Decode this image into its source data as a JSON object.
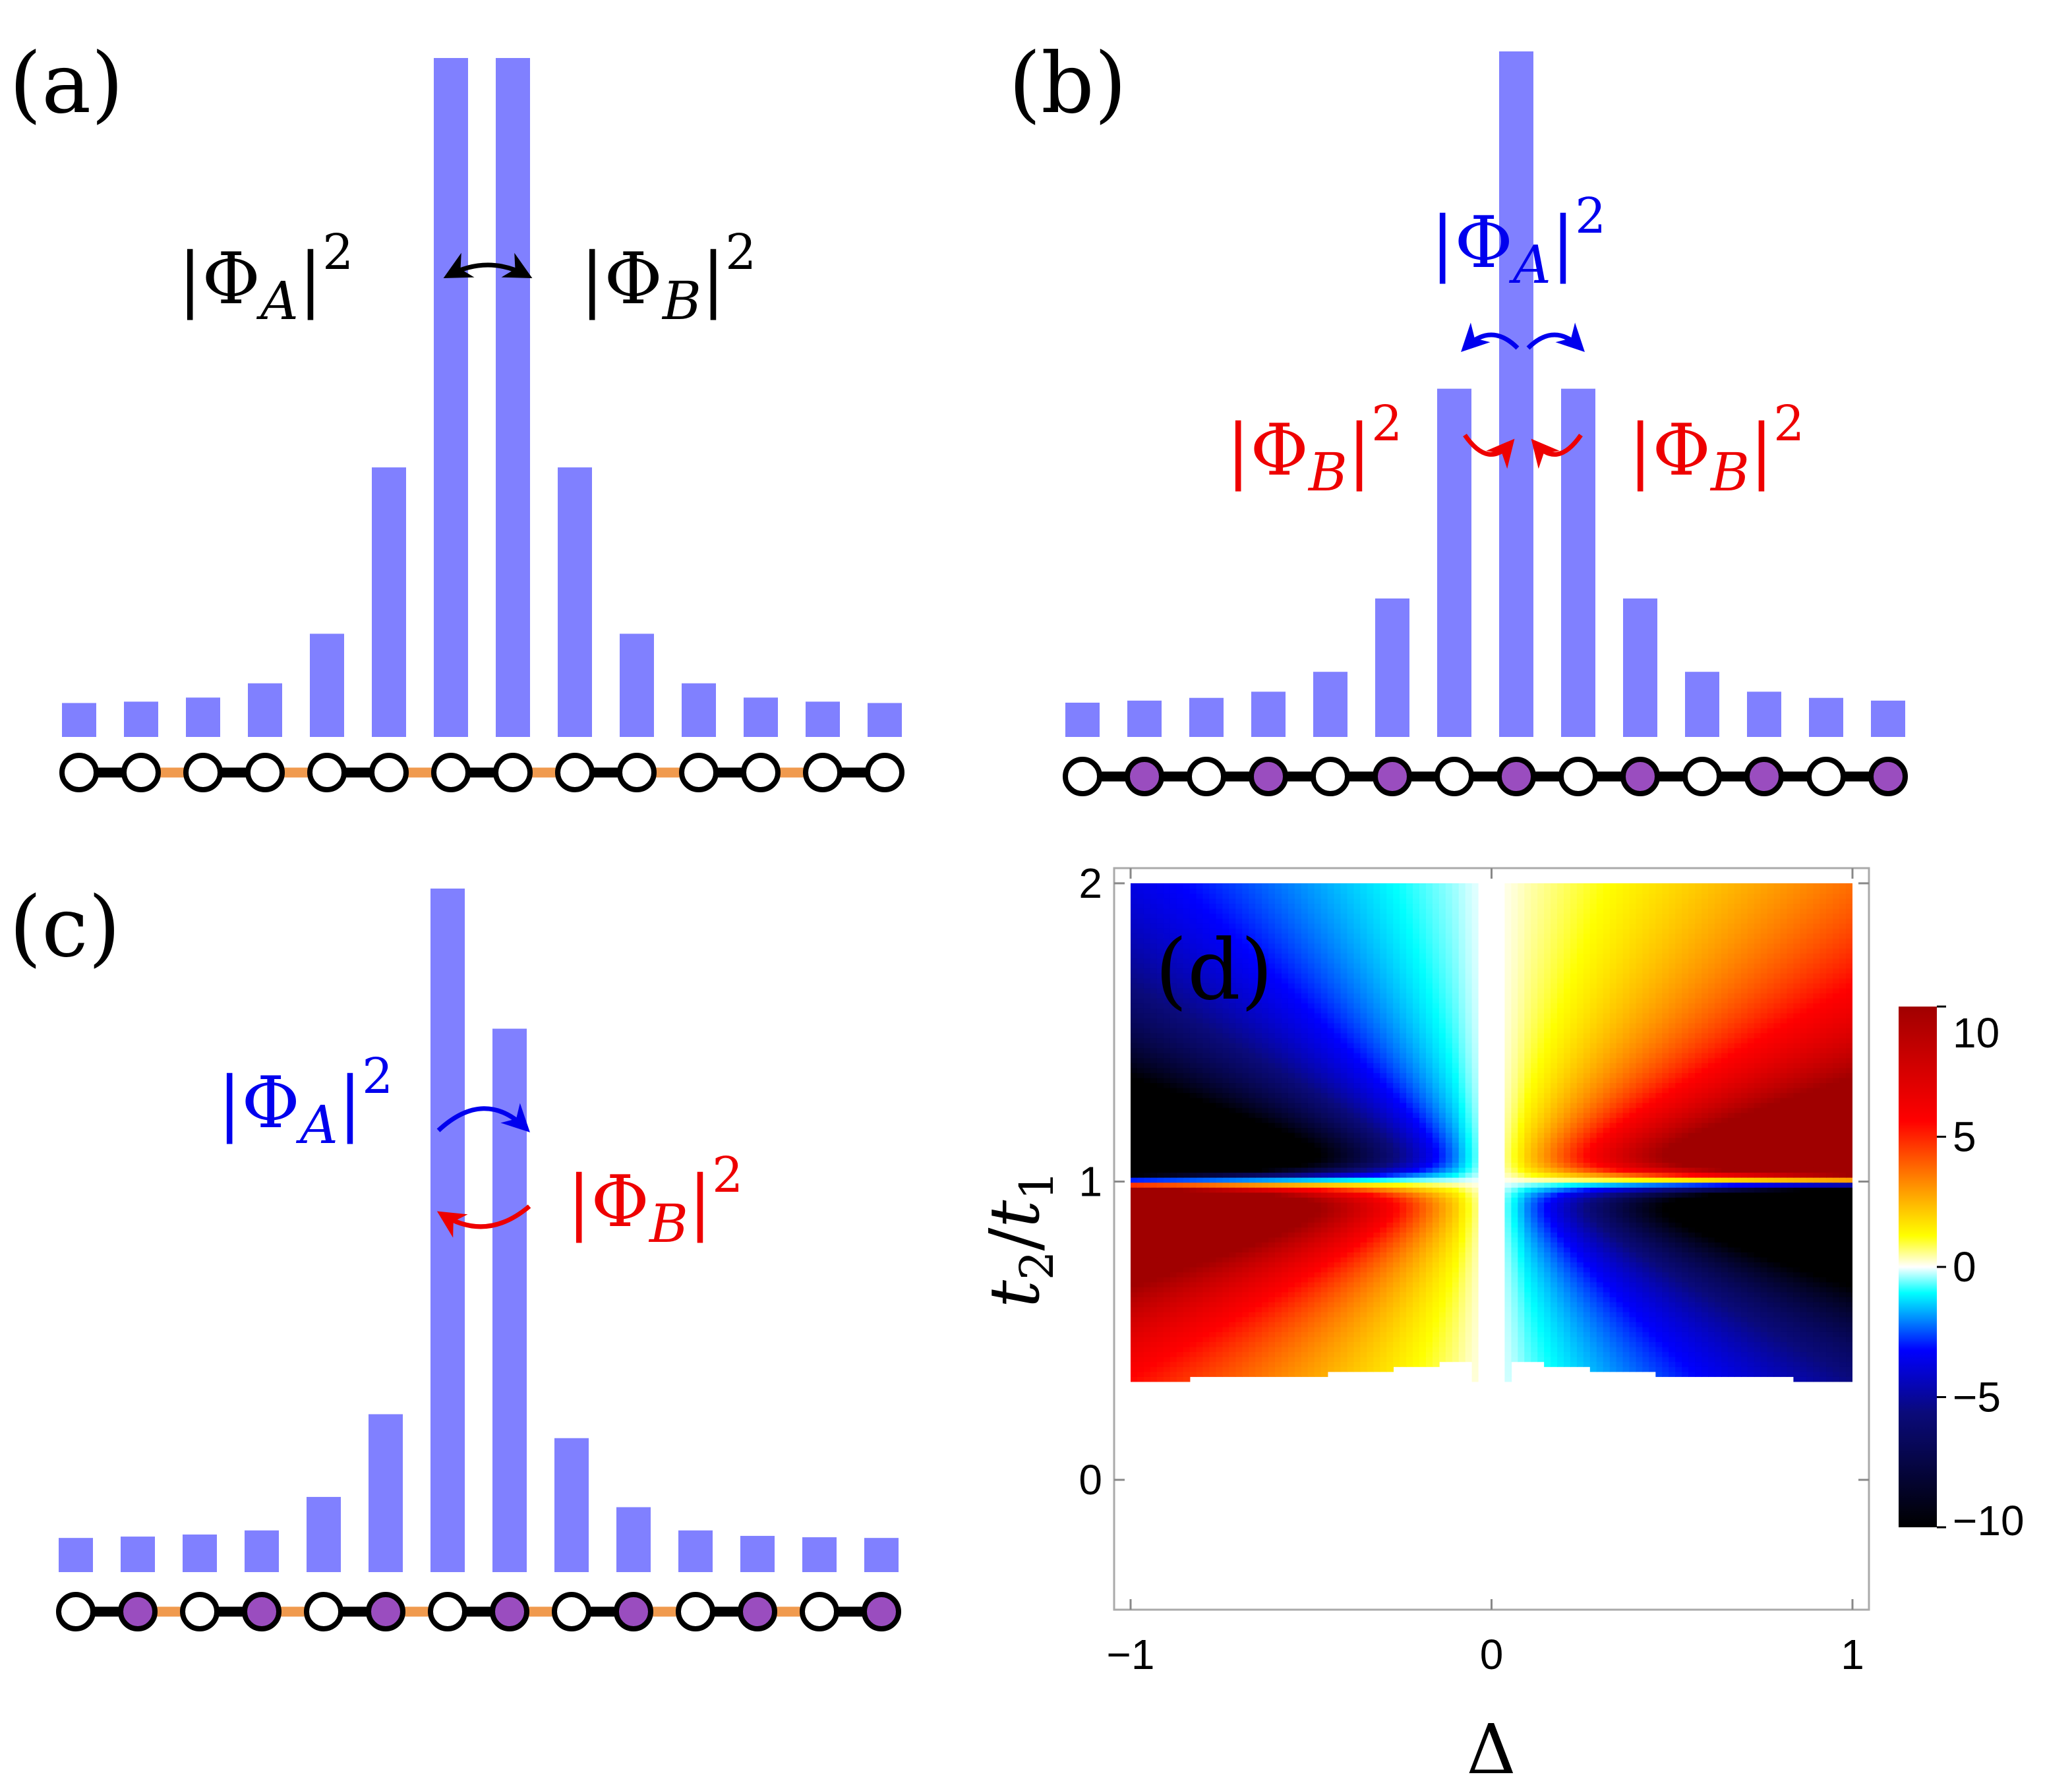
{
  "chart_data": [
    {
      "type": "bar",
      "panel": "(a)",
      "values": [
        0.05,
        0.052,
        0.058,
        0.079,
        0.152,
        0.397,
        1.0,
        1.0,
        0.397,
        0.152,
        0.079,
        0.058,
        0.052,
        0.05
      ],
      "sites": [
        "white",
        "white",
        "white",
        "white",
        "white",
        "white",
        "white",
        "white",
        "white",
        "white",
        "white",
        "white",
        "white",
        "white"
      ],
      "bonds": [
        "strong",
        "weak",
        "strong",
        "weak",
        "strong",
        "weak",
        "strong",
        "weak",
        "strong",
        "weak",
        "strong",
        "weak",
        "strong"
      ],
      "annotations": [
        {
          "text": "|Φ_A|^2",
          "base": "Φ",
          "sub": "A",
          "sup": "2",
          "color": "#000000"
        },
        {
          "text": "|Φ_B|^2",
          "base": "Φ",
          "sub": "B",
          "sup": "2",
          "color": "#000000"
        }
      ]
    },
    {
      "type": "bar",
      "panel": "(b)",
      "values": [
        0.05,
        0.053,
        0.057,
        0.066,
        0.095,
        0.202,
        0.508,
        1.0,
        0.508,
        0.202,
        0.095,
        0.066,
        0.057,
        0.053
      ],
      "sites": [
        "white",
        "purple",
        "white",
        "purple",
        "white",
        "purple",
        "white",
        "purple",
        "white",
        "purple",
        "white",
        "purple",
        "white",
        "purple"
      ],
      "bonds": [
        "strong",
        "strong",
        "strong",
        "strong",
        "strong",
        "strong",
        "strong",
        "strong",
        "strong",
        "strong",
        "strong",
        "strong",
        "strong"
      ],
      "annotations": [
        {
          "text": "|Φ_A|^2",
          "base": "Φ",
          "sub": "A",
          "sup": "2",
          "color": "#0000ee"
        },
        {
          "text": "|Φ_B|^2",
          "base": "Φ",
          "sub": "B",
          "sup": "2",
          "color": "#ee0000"
        },
        {
          "text": "|Φ_B|^2",
          "base": "Φ",
          "sub": "B",
          "sup": "2",
          "color": "#ee0000"
        }
      ]
    },
    {
      "type": "bar",
      "panel": "(c)",
      "values": [
        0.05,
        0.052,
        0.055,
        0.061,
        0.11,
        0.231,
        1.0,
        0.795,
        0.196,
        0.095,
        0.061,
        0.053,
        0.051,
        0.05
      ],
      "sites": [
        "white",
        "purple",
        "white",
        "purple",
        "white",
        "purple",
        "white",
        "purple",
        "white",
        "purple",
        "white",
        "purple",
        "white",
        "purple"
      ],
      "bonds": [
        "strong",
        "weak",
        "strong",
        "weak",
        "strong",
        "weak",
        "strong",
        "weak",
        "strong",
        "weak",
        "strong",
        "weak",
        "strong"
      ],
      "annotations": [
        {
          "text": "|Φ_A|^2",
          "base": "Φ",
          "sub": "A",
          "sup": "2",
          "color": "#0000ee"
        },
        {
          "text": "|Φ_B|^2",
          "base": "Φ",
          "sub": "B",
          "sup": "2",
          "color": "#ee0000"
        }
      ]
    },
    {
      "type": "heatmap",
      "panel": "(d)",
      "xlabel": "Δ",
      "ylabel": "t2/t1",
      "ylabel_parts": {
        "t": "t",
        "sub1": "2",
        "slash": "/",
        "sub2": "1"
      },
      "xlim": [
        -1,
        1
      ],
      "ylim": [
        0,
        2
      ],
      "xticks": [
        "−1",
        "0",
        "1"
      ],
      "yticks": [
        "0",
        "1",
        "2"
      ],
      "data_region": {
        "x": [
          -1,
          1
        ],
        "y": [
          0.33,
          2
        ]
      },
      "colorbar": {
        "range": [
          -10,
          10
        ],
        "ticks": [
          "10",
          "5",
          "0",
          "−5",
          "−10"
        ],
        "tick_values": [
          10,
          5,
          0,
          -5,
          -10
        ],
        "colormap": [
          "#000000",
          "#0a0a7a",
          "#0000ff",
          "#00ffff",
          "#ffffff",
          "#ffff00",
          "#ff8c00",
          "#ff0000",
          "#a00000"
        ]
      }
    }
  ],
  "colors": {
    "bar": "#8080ff",
    "bond_strong": "#000000",
    "bond_weak": "#f09a4e",
    "site_white": "#ffffff",
    "site_purple": "#9a4dbf",
    "arrow_black": "#000000",
    "arrow_blue": "#0000ee",
    "arrow_red": "#ee0000",
    "frame": "#aaaaaa"
  }
}
